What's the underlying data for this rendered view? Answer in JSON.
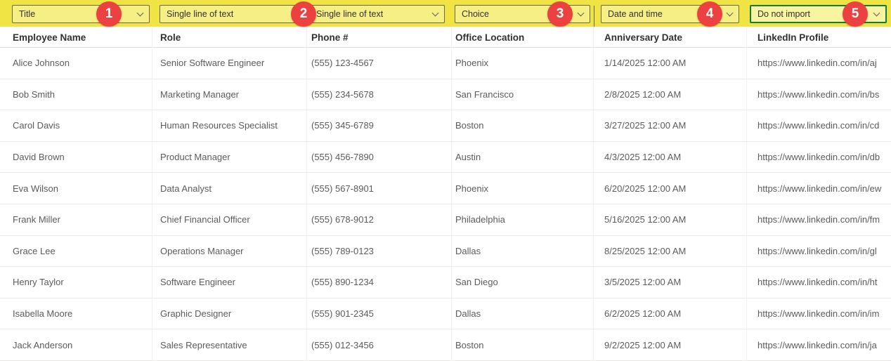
{
  "colors": {
    "highlight_band": "#f0e444",
    "dropdown_fill": "#f5ef85",
    "dropdown_border": "#6a6852",
    "focused_dropdown_border": "#107C41",
    "badge_red": "#eb4141",
    "header_text": "#323130",
    "cell_text": "#5d5b59"
  },
  "mapping_bar": {
    "dropdowns": [
      {
        "value": "Title",
        "badge": "1",
        "focused": false
      },
      {
        "value": "Single line of text",
        "badge": "2",
        "focused": false
      },
      {
        "value": "Single line of text",
        "badge": null,
        "focused": false
      },
      {
        "value": "Choice",
        "badge": "3",
        "focused": false
      },
      {
        "value": "Date and time",
        "badge": "4",
        "focused": false
      },
      {
        "value": "Do not import",
        "badge": "5",
        "focused": true
      }
    ]
  },
  "table": {
    "columns": [
      "Employee Name",
      "Role",
      "Phone #",
      "Office Location",
      "Anniversary Date",
      "LinkedIn Profile"
    ],
    "rows": [
      [
        "Alice Johnson",
        "Senior Software Engineer",
        "(555) 123-4567",
        "Phoenix",
        "1/14/2025 12:00 AM",
        "https://www.linkedin.com/in/aj"
      ],
      [
        "Bob Smith",
        "Marketing Manager",
        "(555) 234-5678",
        "San Francisco",
        "2/8/2025 12:00 AM",
        "https://www.linkedin.com/in/bs"
      ],
      [
        "Carol Davis",
        "Human Resources Specialist",
        "(555) 345-6789",
        "Boston",
        "3/27/2025 12:00 AM",
        "https://www.linkedin.com/in/cd"
      ],
      [
        "David Brown",
        "Product Manager",
        "(555) 456-7890",
        "Austin",
        "4/3/2025 12:00 AM",
        "https://www.linkedin.com/in/db"
      ],
      [
        "Eva Wilson",
        "Data Analyst",
        "(555) 567-8901",
        "Phoenix",
        "6/20/2025 12:00 AM",
        "https://www.linkedin.com/in/ew"
      ],
      [
        "Frank Miller",
        "Chief Financial Officer",
        "(555) 678-9012",
        "Philadelphia",
        "5/16/2025 12:00 AM",
        "https://www.linkedin.com/in/fm"
      ],
      [
        "Grace Lee",
        "Operations Manager",
        "(555) 789-0123",
        "Dallas",
        "8/25/2025 12:00 AM",
        "https://www.linkedin.com/in/gl"
      ],
      [
        "Henry Taylor",
        "Software Engineer",
        "(555) 890-1234",
        "San Diego",
        "3/5/2025 12:00 AM",
        "https://www.linkedin.com/in/ht"
      ],
      [
        "Isabella Moore",
        "Graphic Designer",
        "(555) 901-2345",
        "Dallas",
        "6/2/2025 12:00 AM",
        "https://www.linkedin.com/in/im"
      ],
      [
        "Jack Anderson",
        "Sales Representative",
        "(555) 012-3456",
        "Boston",
        "9/2/2025 12:00 AM",
        "https://www.linkedin.com/in/ja"
      ]
    ]
  }
}
